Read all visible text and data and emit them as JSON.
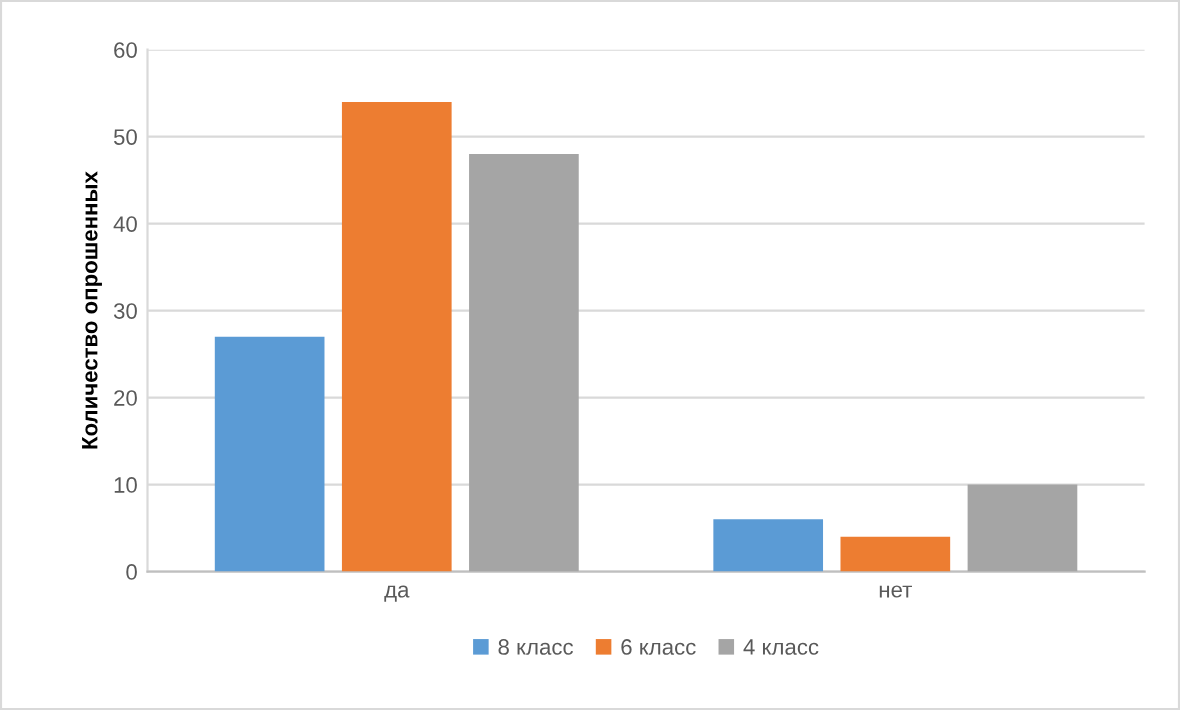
{
  "chart_data": {
    "type": "bar",
    "ylabel": "Количество опрошенных",
    "categories": [
      "да",
      "нет"
    ],
    "series": [
      {
        "name": "8 класс",
        "color": "#5b9bd5",
        "values": [
          27,
          6
        ]
      },
      {
        "name": "6 класс",
        "color": "#ed7d31",
        "values": [
          54,
          4
        ]
      },
      {
        "name": "4 класс",
        "color": "#a5a5a5",
        "values": [
          48,
          10
        ]
      }
    ],
    "ylim": [
      0,
      60
    ],
    "yticks": [
      0,
      10,
      20,
      30,
      40,
      50,
      60
    ],
    "grid": "y",
    "legend": "bottom"
  }
}
